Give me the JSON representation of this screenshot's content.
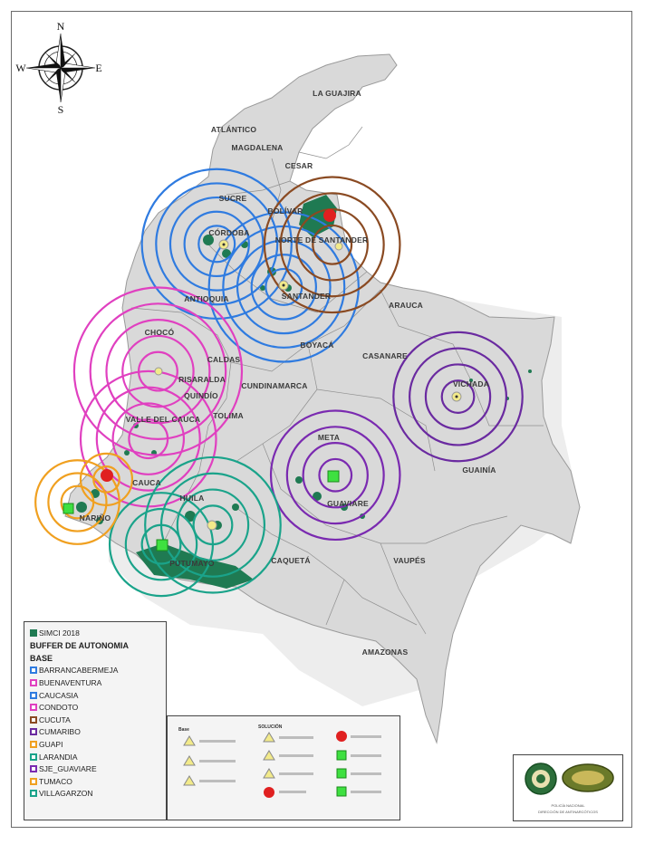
{
  "compass": {
    "n": "N",
    "s": "S",
    "e": "E",
    "w": "W"
  },
  "departments": [
    {
      "name": "LA GUAJIRA"
    },
    {
      "name": "ATLÁNTICO"
    },
    {
      "name": "MAGDALENA"
    },
    {
      "name": "CESAR"
    },
    {
      "name": "SUCRE"
    },
    {
      "name": "BOLÍVAR"
    },
    {
      "name": "CÓRDOBA"
    },
    {
      "name": "NORTE DE SANTANDER"
    },
    {
      "name": "ANTIOQUIA"
    },
    {
      "name": "SANTANDER"
    },
    {
      "name": "ARAUCA"
    },
    {
      "name": "BOYACÁ"
    },
    {
      "name": "CHOCÓ"
    },
    {
      "name": "CALDAS"
    },
    {
      "name": "CASANARE"
    },
    {
      "name": "RISARALDA"
    },
    {
      "name": "QUINDÍO"
    },
    {
      "name": "CUNDINAMARCA"
    },
    {
      "name": "VICHADA"
    },
    {
      "name": "TOLIMA"
    },
    {
      "name": "VALLE DEL CAUCA"
    },
    {
      "name": "META"
    },
    {
      "name": "GUAINÍA"
    },
    {
      "name": "CAUCA"
    },
    {
      "name": "GUAVIARE"
    },
    {
      "name": "HUILA"
    },
    {
      "name": "NARIÑO"
    },
    {
      "name": "PUTUMAYO"
    },
    {
      "name": "CAQUETÁ"
    },
    {
      "name": "VAUPÉS"
    },
    {
      "name": "AMAZONAS"
    }
  ],
  "buffers": [
    {
      "base": "CAUCASIA",
      "color": "#2f7be0",
      "center": [
        0.336,
        0.289
      ],
      "rings": [
        0.028,
        0.05,
        0.072,
        0.094,
        0.116
      ]
    },
    {
      "base": "BARRANCABERMEJA",
      "color": "#2f7be0",
      "center": [
        0.44,
        0.34
      ],
      "rings": [
        0.028,
        0.05,
        0.072,
        0.094,
        0.116
      ]
    },
    {
      "base": "CUCUTA",
      "color": "#8a4a22",
      "center": [
        0.515,
        0.29
      ],
      "rings": [
        0.03,
        0.055,
        0.08,
        0.105
      ]
    },
    {
      "base": "CONDOTO",
      "color": "#e040c0",
      "center": [
        0.245,
        0.44
      ],
      "rings": [
        0.03,
        0.055,
        0.08,
        0.105,
        0.13
      ]
    },
    {
      "base": "BUENAVENTURA",
      "color": "#e040c0",
      "center": [
        0.23,
        0.52
      ],
      "rings": [
        0.03,
        0.055,
        0.08,
        0.105
      ]
    },
    {
      "base": "CUMARIBO",
      "color": "#6a2aa0",
      "center": [
        0.71,
        0.47
      ],
      "rings": [
        0.025,
        0.05,
        0.075,
        0.1
      ]
    },
    {
      "base": "SJE_GUAVIARE",
      "color": "#7a2ab0",
      "center": [
        0.52,
        0.563
      ],
      "rings": [
        0.025,
        0.05,
        0.075,
        0.1
      ]
    },
    {
      "base": "LARANDIA",
      "color": "#1aa38a",
      "center": [
        0.33,
        0.622
      ],
      "rings": [
        0.03,
        0.055,
        0.08,
        0.105
      ]
    },
    {
      "base": "VILLAGARZON",
      "color": "#1aa38a",
      "center": [
        0.25,
        0.645
      ],
      "rings": [
        0.03,
        0.055,
        0.08
      ]
    },
    {
      "base": "TUMACO",
      "color": "#f0a020",
      "center": [
        0.12,
        0.595
      ],
      "rings": [
        0.025,
        0.045,
        0.065
      ]
    },
    {
      "base": "GUAPI",
      "color": "#f0a020",
      "center": [
        0.165,
        0.568
      ],
      "rings": [
        0.02,
        0.04
      ]
    }
  ],
  "legend": {
    "simci": "SIMCI 2018",
    "buffer_title": "BUFFER DE AUTONOMIA",
    "base_title": "BASE",
    "simci_color": "#1f7a52",
    "items": [
      {
        "label": "BARRANCABERMEJA",
        "color": "#2f7be0"
      },
      {
        "label": "BUENAVENTURA",
        "color": "#e040c0"
      },
      {
        "label": "CAUCASIA",
        "color": "#2f7be0"
      },
      {
        "label": "CONDOTO",
        "color": "#e040c0"
      },
      {
        "label": "CUCUTA",
        "color": "#8a4a22"
      },
      {
        "label": "CUMARIBO",
        "color": "#6a2aa0"
      },
      {
        "label": "GUAPI",
        "color": "#f0a020"
      },
      {
        "label": "LARANDIA",
        "color": "#1aa38a"
      },
      {
        "label": "SJE_GUAVIARE",
        "color": "#7a2ab0"
      },
      {
        "label": "TUMACO",
        "color": "#f0a020"
      },
      {
        "label": "VILLAGARZON",
        "color": "#1aa38a"
      }
    ]
  },
  "symbols": {
    "col1_title": "Base",
    "col2_title": "SOLUCIÓN",
    "marker_yellow": "#f2ea8a",
    "marker_red": "#e02020",
    "marker_green": "#3ee040"
  },
  "logos": {
    "line1": "POLICÍA NACIONAL",
    "line2": "DIRECCIÓN DE ANTINARCÓTICOS"
  }
}
